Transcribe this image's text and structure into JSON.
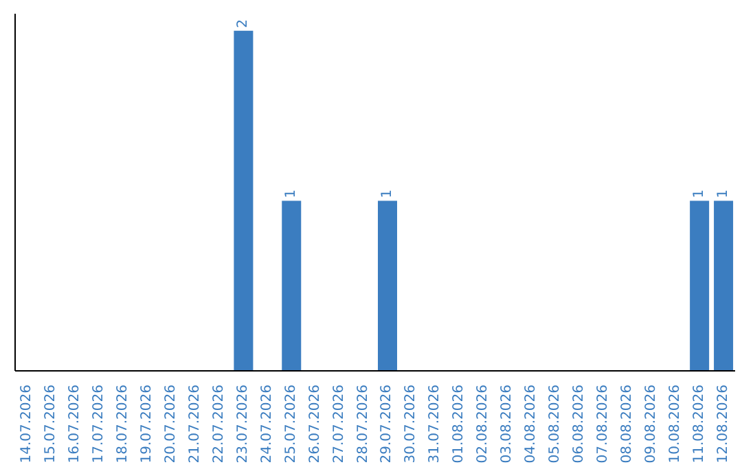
{
  "chart_data": {
    "type": "bar",
    "categories": [
      "14.07.2026",
      "15.07.2026",
      "16.07.2026",
      "17.07.2026",
      "18.07.2026",
      "19.07.2026",
      "20.07.2026",
      "21.07.2026",
      "22.07.2026",
      "23.07.2026",
      "24.07.2026",
      "25.07.2026",
      "26.07.2026",
      "27.07.2026",
      "28.07.2026",
      "29.07.2026",
      "30.07.2026",
      "31.07.2026",
      "01.08.2026",
      "02.08.2026",
      "03.08.2026",
      "04.08.2026",
      "05.08.2026",
      "06.08.2026",
      "07.08.2026",
      "08.08.2026",
      "09.08.2026",
      "10.08.2026",
      "11.08.2026",
      "12.08.2026"
    ],
    "values": [
      0,
      0,
      0,
      0,
      0,
      0,
      0,
      0,
      0,
      2,
      0,
      1,
      0,
      0,
      0,
      1,
      0,
      0,
      0,
      0,
      0,
      0,
      0,
      0,
      0,
      0,
      0,
      0,
      1,
      1
    ],
    "value_labels": [
      null,
      null,
      null,
      null,
      null,
      null,
      null,
      null,
      null,
      "2",
      null,
      "1",
      null,
      null,
      null,
      "1",
      null,
      null,
      null,
      null,
      null,
      null,
      null,
      null,
      null,
      null,
      null,
      null,
      "1",
      "1"
    ],
    "color": "#3b7dc0",
    "tick_labels": "x",
    "grid": false,
    "legend": false
  }
}
